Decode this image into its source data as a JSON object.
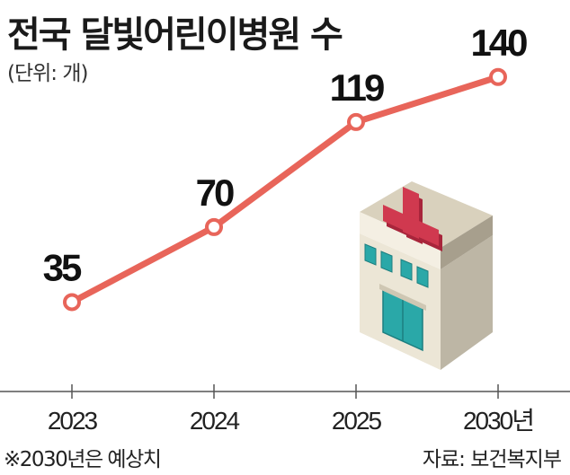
{
  "title": "전국 달빛어린이병원 수",
  "unit": "(단위: 개)",
  "footnote": "※2030년은 예상치",
  "source": "자료: 보건복지부",
  "colors": {
    "line": "#e8655a",
    "marker_fill": "#ffffff",
    "axis": "#555555",
    "building_front": "#ece6d6",
    "building_side": "#bdb6a5",
    "cross": "#d0394f",
    "window": "#2aa8a8"
  },
  "illustration": "hospital-building-icon",
  "chart_data": {
    "type": "line",
    "title": "전국 달빛어린이병원 수",
    "ylabel": "(단위: 개)",
    "xlabel": "",
    "categories": [
      "2023",
      "2024",
      "2025",
      "2030년"
    ],
    "series": [
      {
        "values": [
          35,
          70,
          119,
          140
        ]
      }
    ],
    "data_labels": [
      "35",
      "70",
      "119",
      "140"
    ],
    "ylim": [
      0,
      160
    ],
    "grid": false,
    "legend": "none"
  }
}
